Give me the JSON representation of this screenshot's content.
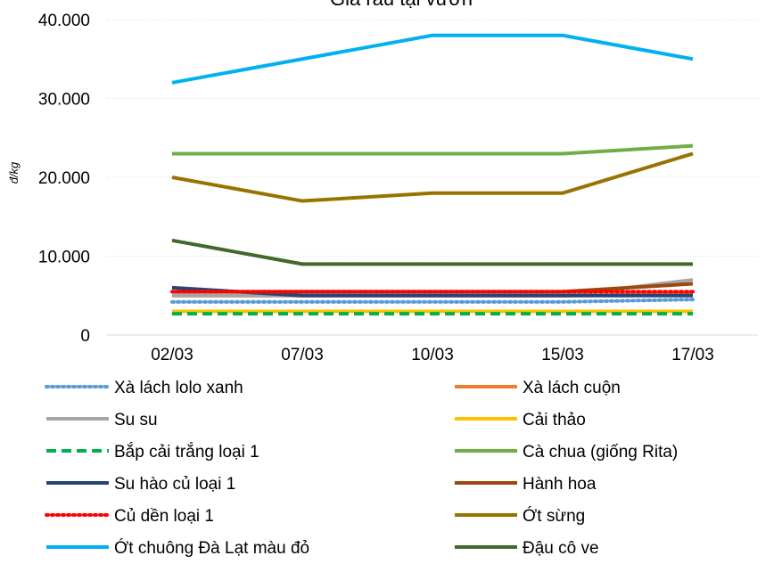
{
  "chart_data": {
    "type": "line",
    "title": "Giá rau tại vườn",
    "ylabel": "đ/kg",
    "xlabel": "",
    "categories": [
      "02/03",
      "07/03",
      "10/03",
      "15/03",
      "17/03"
    ],
    "ylim": [
      0,
      40000
    ],
    "y_ticks": [
      "0",
      "10.000",
      "20.000",
      "30.000",
      "40.000"
    ],
    "y_tick_values": [
      0,
      10000,
      20000,
      30000,
      40000
    ],
    "grid": true,
    "legend_position": "bottom",
    "series": [
      {
        "name": "Xà lách lolo xanh",
        "color": "#5b9bd5",
        "style": "dotted",
        "values": [
          4200,
          4200,
          4200,
          4200,
          4500
        ]
      },
      {
        "name": "Xà lách cuộn",
        "color": "#ed7d31",
        "style": "solid",
        "values": [
          5000,
          5000,
          5000,
          5000,
          5200
        ]
      },
      {
        "name": "Su su",
        "color": "#a5a5a5",
        "style": "solid",
        "values": [
          5000,
          5000,
          5000,
          5000,
          7000
        ]
      },
      {
        "name": "Cải thảo",
        "color": "#ffc000",
        "style": "solid",
        "values": [
          3000,
          3000,
          3000,
          3000,
          3000
        ]
      },
      {
        "name": "Bắp cải trắng loại 1",
        "color": "#00b050",
        "style": "dashed",
        "values": [
          2700,
          2700,
          2700,
          2700,
          2700
        ]
      },
      {
        "name": "Cà chua (giống Rita)",
        "color": "#70ad47",
        "style": "solid",
        "values": [
          23000,
          23000,
          23000,
          23000,
          24000
        ]
      },
      {
        "name": "Su hào củ loại 1",
        "color": "#264478",
        "style": "solid",
        "values": [
          6000,
          5000,
          5000,
          5000,
          5000
        ]
      },
      {
        "name": "Hành hoa",
        "color": "#9e480e",
        "style": "solid",
        "values": [
          5500,
          5500,
          5500,
          5500,
          6500
        ]
      },
      {
        "name": "Củ dền loại 1",
        "color": "#ff0000",
        "style": "dotted",
        "values": [
          5500,
          5500,
          5500,
          5500,
          5500
        ]
      },
      {
        "name": "Ớt sừng",
        "color": "#997300",
        "style": "solid",
        "values": [
          20000,
          17000,
          18000,
          18000,
          23000
        ]
      },
      {
        "name": "Ớt chuông Đà Lạt màu đỏ",
        "color": "#00b0f0",
        "style": "solid",
        "values": [
          32000,
          35000,
          38000,
          38000,
          35000
        ]
      },
      {
        "name": "Đậu cô ve",
        "color": "#43682b",
        "style": "solid",
        "values": [
          12000,
          9000,
          9000,
          9000,
          9000
        ]
      }
    ]
  }
}
